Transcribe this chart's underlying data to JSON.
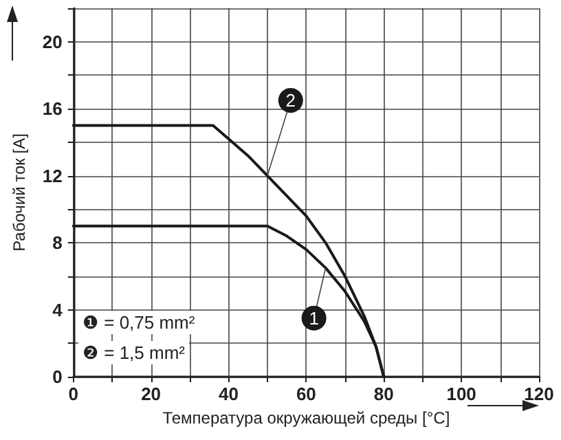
{
  "chart_data": {
    "type": "line",
    "xlabel": "Температура окружающей среды [°C]",
    "ylabel": "Рабочий ток [A]",
    "xlim": [
      0,
      120
    ],
    "ylim": [
      0,
      22
    ],
    "xticks": [
      0,
      {
        "value": 10,
        "label": null
      },
      20,
      {
        "value": 30,
        "label": null
      },
      40,
      {
        "value": 50,
        "label": null
      },
      60,
      {
        "value": 70,
        "label": null
      },
      80,
      {
        "value": 90,
        "label": null
      },
      100,
      {
        "value": 110,
        "label": null
      },
      120
    ],
    "yticks": [
      0,
      {
        "value": 2,
        "label": null
      },
      4,
      {
        "value": 6,
        "label": null
      },
      8,
      {
        "value": 10,
        "label": null
      },
      12,
      {
        "value": 14,
        "label": null
      },
      16,
      {
        "value": 18,
        "label": null
      },
      20,
      {
        "value": 22,
        "label": null
      }
    ],
    "grid": true,
    "marker": "none",
    "line_style": "solid",
    "series": [
      {
        "name": "1",
        "color": "#1a1a1a",
        "x": [
          0,
          50,
          55,
          60,
          65,
          70,
          75,
          78,
          80
        ],
        "values": [
          9,
          9,
          8.4,
          7.6,
          6.5,
          5.1,
          3.3,
          1.8,
          0
        ]
      },
      {
        "name": "2",
        "color": "#1a1a1a",
        "x": [
          0,
          36,
          40,
          45,
          50,
          55,
          60,
          65,
          70,
          75,
          78,
          80
        ],
        "values": [
          15,
          15,
          14.2,
          13.2,
          12.0,
          10.8,
          9.6,
          8,
          6,
          3.6,
          1.8,
          0
        ]
      }
    ],
    "annotations": [
      "❶ = 0,75 mm²",
      "❷ = 1,5 mm²"
    ]
  }
}
